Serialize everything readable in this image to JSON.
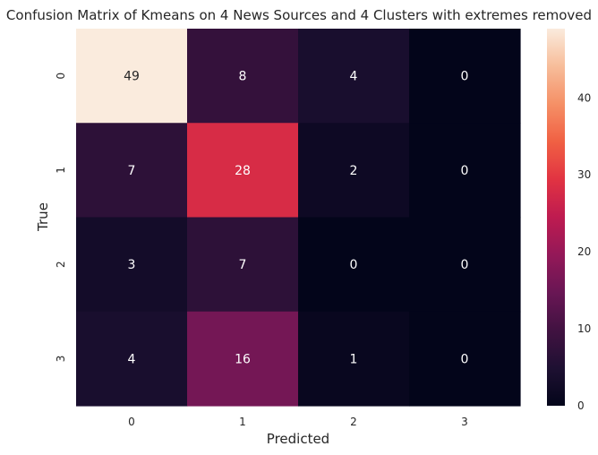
{
  "chart_data": {
    "type": "heatmap",
    "title": "Confusion Matrix of Kmeans on 4 News Sources and 4 Clusters with extremes removed",
    "xlabel": "Predicted",
    "ylabel": "True",
    "x_categories": [
      "0",
      "1",
      "2",
      "3"
    ],
    "y_categories": [
      "0",
      "1",
      "2",
      "3"
    ],
    "values": [
      [
        49,
        8,
        4,
        0
      ],
      [
        7,
        28,
        2,
        0
      ],
      [
        3,
        7,
        0,
        0
      ],
      [
        4,
        16,
        1,
        0
      ]
    ],
    "colorbar": {
      "min": 0,
      "max": 49,
      "ticks": [
        0,
        10,
        20,
        30,
        40
      ],
      "colormap": "rocket"
    },
    "annotation_colors": {
      "light": "#ffffff",
      "dark": "#262626"
    },
    "grid": false,
    "legend": "none"
  }
}
